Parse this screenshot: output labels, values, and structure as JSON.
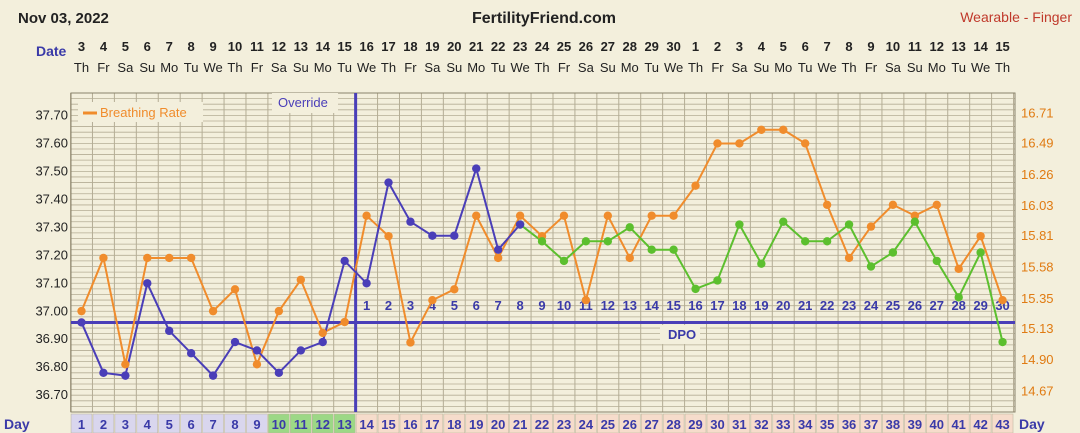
{
  "header": {
    "date": "Nov 03, 2022",
    "site": "FertilityFriend.com",
    "device": "Wearable - Finger"
  },
  "labels": {
    "date_row": "Date",
    "day_row": "Day",
    "day_row_right": "Day",
    "override": "Override",
    "dpo": "DPO",
    "legend": "Breathing Rate"
  },
  "colors": {
    "background": "#f3efdc",
    "grid": "#b4ad95",
    "temperature": "#4a3eb8",
    "breathing": "#f08c2c",
    "green_temp": "#5cbf2e",
    "blue_text": "#3a3aa8",
    "right_axis": "#e07b12",
    "header_red": "#c0392b",
    "day_cell": "#f6dccb",
    "day_cell_green": "#9cd886",
    "day_cell_blue": "#d9d6ee"
  },
  "chart_data": {
    "type": "line",
    "title": "FertilityFriend.com",
    "ylim": [
      36.64,
      37.78
    ],
    "y_ticks": [
      "37.70",
      "37.60",
      "37.50",
      "37.40",
      "37.30",
      "37.20",
      "37.10",
      "37.00",
      "36.90",
      "36.80",
      "36.70"
    ],
    "y2lim": [
      14.52,
      16.86
    ],
    "y2_ticks": [
      "16.71",
      "16.49",
      "16.26",
      "16.03",
      "15.81",
      "15.58",
      "15.35",
      "15.13",
      "14.90",
      "14.67"
    ],
    "dates": [
      "3",
      "4",
      "5",
      "6",
      "7",
      "8",
      "9",
      "10",
      "11",
      "12",
      "13",
      "14",
      "15",
      "16",
      "17",
      "18",
      "19",
      "20",
      "21",
      "22",
      "23",
      "24",
      "25",
      "26",
      "27",
      "28",
      "29",
      "30",
      "1",
      "2",
      "3",
      "4",
      "5",
      "6",
      "7",
      "8",
      "9",
      "10",
      "11",
      "12",
      "13",
      "14",
      "15"
    ],
    "weekdays": [
      "Th",
      "Fr",
      "Sa",
      "Su",
      "Mo",
      "Tu",
      "We",
      "Th",
      "Fr",
      "Sa",
      "Su",
      "Mo",
      "Tu",
      "We",
      "Th",
      "Fr",
      "Sa",
      "Su",
      "Mo",
      "Tu",
      "We",
      "Th",
      "Fr",
      "Sa",
      "Su",
      "Mo",
      "Tu",
      "We",
      "Th",
      "Fr",
      "Sa",
      "Su",
      "Mo",
      "Tu",
      "We",
      "Th",
      "Fr",
      "Sa",
      "Su",
      "Mo",
      "Tu",
      "We",
      "Th"
    ],
    "days": [
      1,
      2,
      3,
      4,
      5,
      6,
      7,
      8,
      9,
      10,
      11,
      12,
      13,
      14,
      15,
      16,
      17,
      18,
      19,
      20,
      21,
      22,
      23,
      24,
      25,
      26,
      27,
      28,
      29,
      30,
      31,
      32,
      33,
      34,
      35,
      36,
      37,
      38,
      39,
      40,
      41,
      42,
      43
    ],
    "green_cycle_days": [
      10,
      11,
      12,
      13
    ],
    "dpo_labels": [
      "1",
      "2",
      "3",
      "4",
      "5",
      "6",
      "7",
      "8",
      "9",
      "10",
      "11",
      "12",
      "13",
      "14",
      "15",
      "16",
      "17",
      "18",
      "19",
      "20",
      "21",
      "22",
      "23",
      "24",
      "25",
      "26",
      "27",
      "28",
      "29",
      "30"
    ],
    "coverline": 36.96,
    "override_day": 13,
    "temperature_series": {
      "name": "Temperature",
      "values": [
        36.96,
        36.78,
        36.77,
        37.1,
        36.93,
        36.85,
        36.77,
        36.89,
        36.86,
        36.78,
        36.86,
        36.89,
        37.18,
        37.1,
        37.46,
        37.32,
        37.27,
        37.27,
        37.51,
        37.22,
        37.31
      ]
    },
    "temperature_green_series": {
      "name": "Temperature (wearable)",
      "start_day": 21,
      "values": [
        37.31,
        37.25,
        37.18,
        37.25,
        37.25,
        37.3,
        37.22,
        37.22,
        37.08,
        37.11,
        37.31,
        37.17,
        37.32,
        37.25,
        37.25,
        37.31,
        37.16,
        37.21,
        37.32,
        37.18,
        37.05,
        37.21,
        36.89
      ]
    },
    "breathing_series": {
      "name": "Breathing Rate",
      "values": [
        15.26,
        15.65,
        14.87,
        15.65,
        15.65,
        15.65,
        15.26,
        15.42,
        14.87,
        15.26,
        15.49,
        15.1,
        15.18,
        15.96,
        15.81,
        15.03,
        15.34,
        15.42,
        15.96,
        15.65,
        15.96,
        15.81,
        15.96,
        15.34,
        15.96,
        15.65,
        15.96,
        15.96,
        16.18,
        16.49,
        16.49,
        16.59,
        16.59,
        16.49,
        16.04,
        15.65,
        15.88,
        16.04,
        15.96,
        16.04,
        15.57,
        15.81,
        15.34
      ]
    }
  }
}
